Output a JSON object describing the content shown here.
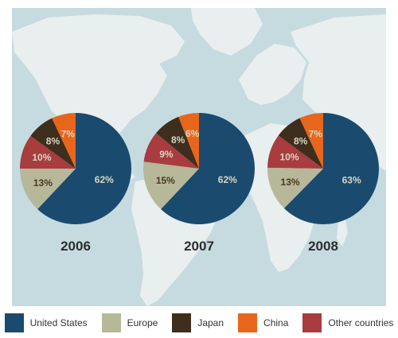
{
  "chart_data": [
    {
      "type": "pie",
      "title": "2006",
      "slices": [
        {
          "label": "United States",
          "value": 62,
          "text": "62%"
        },
        {
          "label": "Europe",
          "value": 13,
          "text": "13%"
        },
        {
          "label": "Other countries",
          "value": 10,
          "text": "10%"
        },
        {
          "label": "Japan",
          "value": 8,
          "text": "8%"
        },
        {
          "label": "China",
          "value": 7,
          "text": "7%"
        }
      ]
    },
    {
      "type": "pie",
      "title": "2007",
      "slices": [
        {
          "label": "United States",
          "value": 62,
          "text": "62%"
        },
        {
          "label": "Europe",
          "value": 15,
          "text": "15%"
        },
        {
          "label": "Other countries",
          "value": 9,
          "text": "9%"
        },
        {
          "label": "Japan",
          "value": 8,
          "text": "8%"
        },
        {
          "label": "China",
          "value": 6,
          "text": "6%"
        }
      ]
    },
    {
      "type": "pie",
      "title": "2008",
      "slices": [
        {
          "label": "United States",
          "value": 63,
          "text": "63%"
        },
        {
          "label": "Europe",
          "value": 13,
          "text": "13%"
        },
        {
          "label": "Other countries",
          "value": 10,
          "text": "10%"
        },
        {
          "label": "Japan",
          "value": 8,
          "text": "8%"
        },
        {
          "label": "China",
          "value": 7,
          "text": "7%"
        }
      ]
    }
  ],
  "legend": {
    "placement": "bottom",
    "items": [
      {
        "label": "United States",
        "color": "#1a4a6e"
      },
      {
        "label": "Europe",
        "color": "#b7b79a"
      },
      {
        "label": "Japan",
        "color": "#3e2e1d"
      },
      {
        "label": "China",
        "color": "#e8661b"
      },
      {
        "label": "Other countries",
        "color": "#a83c3f"
      }
    ]
  },
  "colors": {
    "United States": "#1a4a6e",
    "Europe": "#b7b79a",
    "Japan": "#3e2e1d",
    "China": "#e8661b",
    "Other countries": "#a83c3f",
    "map_background": "#c6dbe0",
    "land": "#e9eeee",
    "label_light": "#d8d6c2",
    "label_dark": "#4a3a1e",
    "year_text": "#2d2d2d"
  }
}
